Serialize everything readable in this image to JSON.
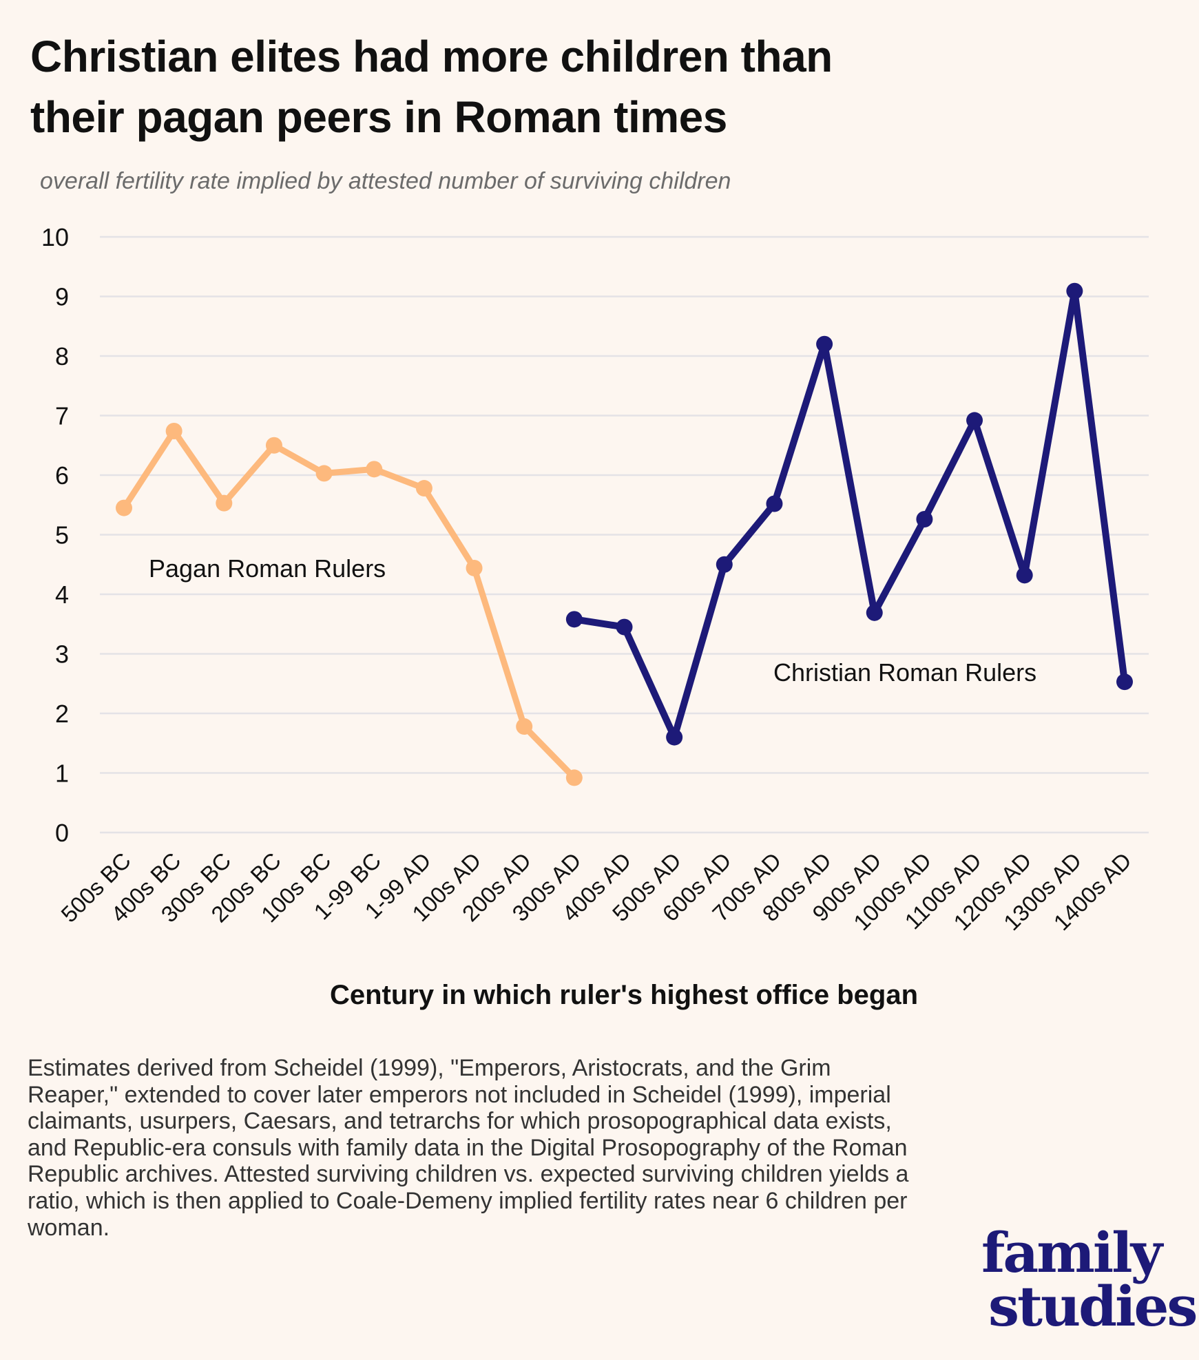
{
  "title_lines": [
    "Christian elites had more children than",
    "their pagan peers in Roman times"
  ],
  "subtitle": "overall fertility rate implied by attested number of surviving children",
  "chart_data": {
    "type": "line",
    "title": "Christian elites had more children than their pagan peers in Roman times",
    "subtitle": "overall fertility rate implied by attested number of surviving children",
    "xlabel": "Century in which ruler's highest office began",
    "ylabel": "",
    "ylim": [
      0,
      10
    ],
    "yticks": [
      0,
      1,
      2,
      3,
      4,
      5,
      6,
      7,
      8,
      9,
      10
    ],
    "grid": true,
    "categories": [
      "500s BC",
      "400s BC",
      "300s BC",
      "200s BC",
      "100s BC",
      "1-99 BC",
      "1-99 AD",
      "100s AD",
      "200s AD",
      "300s AD",
      "400s AD",
      "500s AD",
      "600s AD",
      "700s AD",
      "800s AD",
      "900s AD",
      "1000s AD",
      "1100s AD",
      "1200s AD",
      "1300s AD",
      "1400s AD"
    ],
    "series": [
      {
        "name": "Pagan Roman Rulers",
        "color": "#fdb97d",
        "values": [
          5.45,
          6.74,
          5.53,
          6.5,
          6.03,
          6.1,
          5.78,
          4.44,
          1.78,
          0.92,
          null,
          null,
          null,
          null,
          null,
          null,
          null,
          null,
          null,
          null,
          null
        ]
      },
      {
        "name": "Christian Roman Rulers",
        "color": "#1d1a78",
        "values": [
          null,
          null,
          null,
          null,
          null,
          null,
          null,
          null,
          null,
          3.58,
          3.45,
          1.6,
          4.5,
          5.52,
          8.2,
          3.69,
          5.26,
          6.92,
          4.32,
          9.09,
          2.53
        ]
      }
    ]
  },
  "note": "Estimates derived from Scheidel (1999), \"Emperors, Aristocrats, and the Grim Reaper,\" extended to cover later emperors not included in Scheidel (1999), imperial claimants, usurpers, Caesars, and tetrarchs for which prosopographical data exists, and Republic-era consuls with family data in the Digital Prosopography of the Roman Republic archives. Attested surviving children vs. expected surviving children yields a ratio, which is then applied to Coale-Demeny implied fertility rates near 6 children per woman.",
  "logo": {
    "line1": "family",
    "line2": "studies"
  },
  "background": "#fdf6f0"
}
